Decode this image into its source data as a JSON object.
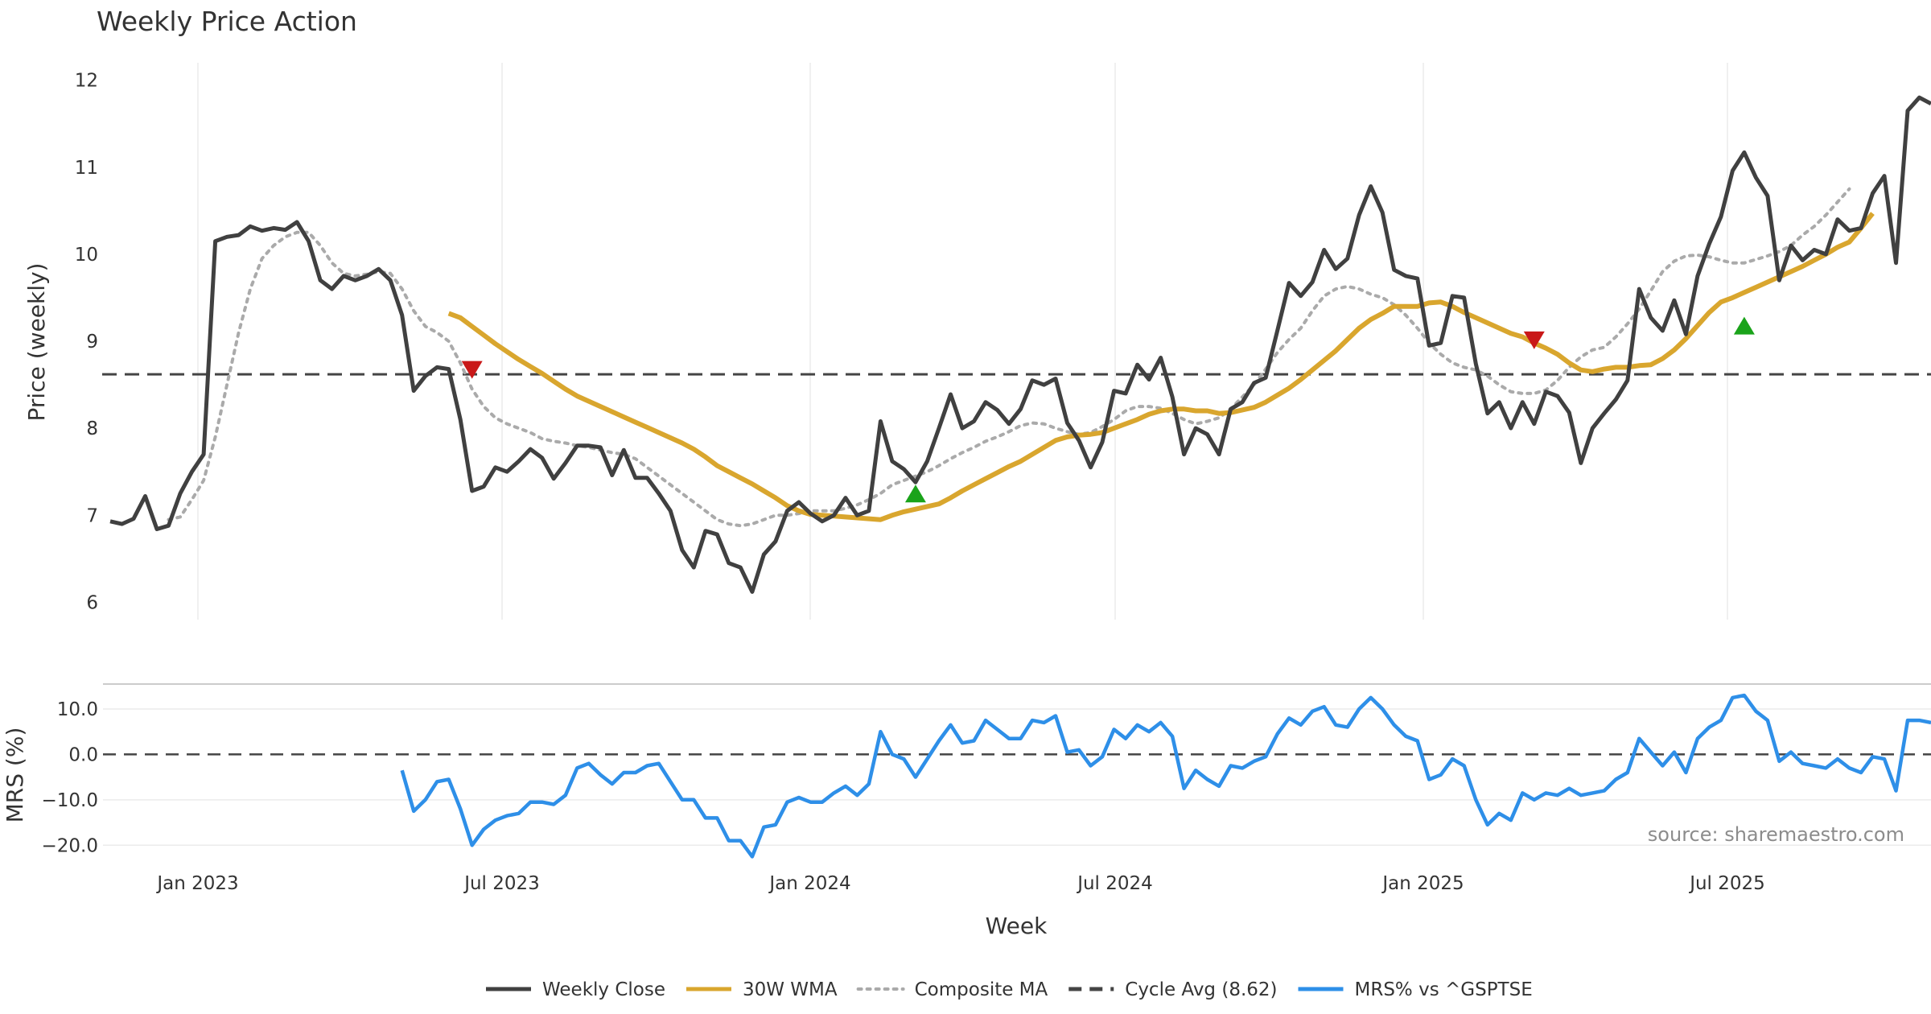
{
  "chart_data": {
    "type": "line",
    "title": "Weekly Price Action",
    "source": "source: sharemaestro.com",
    "xlabel": "Week",
    "x_ticks": [
      "Jan 2023",
      "Jul 2023",
      "Jan 2024",
      "Jul 2024",
      "Jan 2025",
      "Jul 2025"
    ],
    "legend": {
      "placement": "bottom-center",
      "entries": [
        {
          "key": "close",
          "label": "Weekly Close",
          "color": "#404040",
          "style": "solid"
        },
        {
          "key": "wma",
          "label": "30W WMA",
          "color": "#d9a62e",
          "style": "solid"
        },
        {
          "key": "composite",
          "label": "Composite MA",
          "color": "#aaaaaa",
          "style": "dotted"
        },
        {
          "key": "cycle",
          "label": "Cycle Avg (8.62)",
          "color": "#444444",
          "style": "dashed"
        },
        {
          "key": "mrs",
          "label": "MRS% vs ^GSPTSE",
          "color": "#2e8fe8",
          "style": "solid"
        }
      ]
    },
    "price_panel": {
      "ylabel": "Price (weekly)",
      "ylim": [
        5.8,
        12.2
      ],
      "y_ticks": [
        "6",
        "7",
        "8",
        "9",
        "10",
        "11",
        "12"
      ],
      "cycle_avg": 8.62,
      "weekly_close": [
        6.93,
        6.9,
        6.96,
        7.22,
        6.84,
        6.88,
        7.25,
        7.5,
        7.7,
        10.15,
        10.2,
        10.22,
        10.32,
        10.27,
        10.3,
        10.28,
        10.37,
        10.15,
        9.7,
        9.6,
        9.75,
        9.7,
        9.75,
        9.83,
        9.7,
        9.3,
        8.43,
        8.6,
        8.7,
        8.68,
        8.1,
        7.28,
        7.33,
        7.55,
        7.5,
        7.62,
        7.76,
        7.66,
        7.42,
        7.6,
        7.8,
        7.8,
        7.78,
        7.46,
        7.75,
        7.43,
        7.43,
        7.25,
        7.05,
        6.6,
        6.4,
        6.82,
        6.78,
        6.45,
        6.4,
        6.12,
        6.55,
        6.7,
        7.05,
        7.15,
        7.02,
        6.93,
        7.0,
        7.2,
        7.0,
        7.05,
        8.08,
        7.62,
        7.53,
        7.38,
        7.62,
        8.0,
        8.39,
        8.0,
        8.08,
        8.3,
        8.21,
        8.05,
        8.22,
        8.55,
        8.5,
        8.57,
        8.06,
        7.86,
        7.55,
        7.84,
        8.43,
        8.4,
        8.73,
        8.56,
        8.81,
        8.36,
        7.7,
        8.0,
        7.93,
        7.7,
        8.22,
        8.3,
        8.52,
        8.58,
        9.12,
        9.67,
        9.52,
        9.68,
        10.05,
        9.83,
        9.95,
        10.45,
        10.78,
        10.48,
        9.82,
        9.75,
        9.72,
        8.95,
        8.98,
        9.52,
        9.5,
        8.74,
        8.17,
        8.3,
        8.0,
        8.3,
        8.05,
        8.42,
        8.37,
        8.18,
        7.6,
        8.0,
        8.17,
        8.33,
        8.55,
        9.6,
        9.27,
        9.12,
        9.47,
        9.08,
        9.75,
        10.12,
        10.43,
        10.96,
        11.17,
        10.88,
        10.67,
        9.7,
        10.1,
        9.93,
        10.05,
        10.0,
        10.4,
        10.27,
        10.3,
        10.7,
        10.9,
        9.9,
        11.65,
        11.8,
        11.73
      ],
      "wma_30w": [
        null,
        null,
        null,
        null,
        null,
        null,
        null,
        null,
        null,
        null,
        null,
        null,
        null,
        null,
        null,
        null,
        null,
        null,
        null,
        null,
        null,
        null,
        null,
        null,
        null,
        null,
        null,
        null,
        null,
        9.32,
        9.27,
        9.17,
        9.07,
        8.97,
        8.88,
        8.79,
        8.71,
        8.63,
        8.54,
        8.45,
        8.37,
        8.31,
        8.25,
        8.19,
        8.13,
        8.07,
        8.01,
        7.95,
        7.89,
        7.83,
        7.76,
        7.67,
        7.57,
        7.5,
        7.43,
        7.36,
        7.28,
        7.2,
        7.11,
        7.05,
        7.01,
        7.0,
        6.99,
        6.98,
        6.97,
        6.96,
        6.95,
        7.0,
        7.04,
        7.07,
        7.1,
        7.13,
        7.2,
        7.28,
        7.35,
        7.42,
        7.49,
        7.56,
        7.62,
        7.7,
        7.78,
        7.86,
        7.9,
        7.92,
        7.93,
        7.95,
        8.0,
        8.05,
        8.1,
        8.16,
        8.2,
        8.22,
        8.22,
        8.2,
        8.2,
        8.17,
        8.18,
        8.21,
        8.24,
        8.3,
        8.38,
        8.46,
        8.56,
        8.67,
        8.78,
        8.89,
        9.02,
        9.15,
        9.25,
        9.32,
        9.4,
        9.4,
        9.4,
        9.44,
        9.45,
        9.4,
        9.33,
        9.27,
        9.21,
        9.15,
        9.09,
        9.05,
        8.98,
        8.92,
        8.85,
        8.75,
        8.67,
        8.65,
        8.68,
        8.7,
        8.7,
        8.72,
        8.73,
        8.8,
        8.9,
        9.03,
        9.18,
        9.33,
        9.45,
        9.5,
        9.56,
        9.62,
        9.68,
        9.74,
        9.8,
        9.86,
        9.93,
        10.0,
        10.08,
        10.14,
        10.3,
        10.47
      ],
      "composite_ma": [
        null,
        null,
        null,
        null,
        null,
        6.95,
        6.98,
        7.18,
        7.4,
        7.9,
        8.5,
        9.1,
        9.6,
        9.95,
        10.1,
        10.2,
        10.25,
        10.25,
        10.1,
        9.9,
        9.78,
        9.75,
        9.77,
        9.8,
        9.78,
        9.6,
        9.35,
        9.17,
        9.1,
        9.0,
        8.75,
        8.45,
        8.25,
        8.12,
        8.05,
        8.0,
        7.95,
        7.88,
        7.85,
        7.83,
        7.8,
        7.78,
        7.75,
        7.72,
        7.7,
        7.65,
        7.55,
        7.45,
        7.35,
        7.25,
        7.15,
        7.05,
        6.95,
        6.9,
        6.88,
        6.9,
        6.95,
        7.0,
        7.0,
        7.02,
        7.05,
        7.05,
        7.05,
        7.08,
        7.12,
        7.18,
        7.25,
        7.35,
        7.4,
        7.45,
        7.5,
        7.57,
        7.65,
        7.72,
        7.78,
        7.85,
        7.9,
        7.96,
        8.03,
        8.06,
        8.05,
        8.0,
        7.96,
        7.93,
        7.95,
        8.02,
        8.1,
        8.2,
        8.25,
        8.25,
        8.23,
        8.17,
        8.1,
        8.05,
        8.08,
        8.12,
        8.22,
        8.36,
        8.5,
        8.68,
        8.87,
        9.02,
        9.15,
        9.35,
        9.52,
        9.6,
        9.63,
        9.6,
        9.54,
        9.5,
        9.42,
        9.3,
        9.15,
        8.98,
        8.85,
        8.75,
        8.7,
        8.67,
        8.6,
        8.5,
        8.42,
        8.4,
        8.4,
        8.44,
        8.55,
        8.7,
        8.82,
        8.9,
        8.93,
        9.05,
        9.2,
        9.37,
        9.58,
        9.8,
        9.92,
        9.98,
        9.99,
        9.97,
        9.93,
        9.9,
        9.9,
        9.94,
        9.98,
        10.03,
        10.1,
        10.22,
        10.32,
        10.45,
        10.6,
        10.75
      ]
    },
    "mrs_panel": {
      "ylabel": "MRS (%)",
      "ylim": [
        -23.5,
        15.5
      ],
      "y_ticks": [
        "10.0",
        "0.0",
        "−10.0",
        "−20.0"
      ],
      "values": [
        null,
        null,
        null,
        null,
        null,
        null,
        null,
        null,
        null,
        null,
        null,
        null,
        null,
        null,
        null,
        null,
        null,
        null,
        null,
        null,
        null,
        null,
        null,
        null,
        null,
        -3.5,
        -12.5,
        -10.0,
        -6.0,
        -5.5,
        -12.0,
        -20.0,
        -16.5,
        -14.5,
        -13.5,
        -13.0,
        -10.5,
        -10.5,
        -11.0,
        -9.0,
        -3.0,
        -2.0,
        -4.5,
        -6.5,
        -4.0,
        -4.0,
        -2.5,
        -2.0,
        -6.0,
        -10.0,
        -10.0,
        -14.0,
        -14.0,
        -19.0,
        -19.0,
        -22.5,
        -16.0,
        -15.5,
        -10.5,
        -9.5,
        -10.5,
        -10.5,
        -8.5,
        -7.0,
        -9.0,
        -6.5,
        5.0,
        0.0,
        -1.0,
        -5.0,
        -1.0,
        3.0,
        6.5,
        2.5,
        3.0,
        7.5,
        5.5,
        3.5,
        3.5,
        7.5,
        7.0,
        8.5,
        0.5,
        1.0,
        -2.5,
        -0.5,
        5.5,
        3.5,
        6.5,
        5.0,
        7.0,
        4.0,
        -7.5,
        -3.5,
        -5.5,
        -7.0,
        -2.5,
        -3.0,
        -1.5,
        -0.5,
        4.5,
        8.0,
        6.5,
        9.5,
        10.5,
        6.5,
        6.0,
        10.0,
        12.5,
        10.0,
        6.5,
        4.0,
        3.0,
        -5.5,
        -4.5,
        -1.0,
        -2.5,
        -10.0,
        -15.5,
        -13.0,
        -14.5,
        -8.5,
        -10.0,
        -8.5,
        -9.0,
        -7.5,
        -9.0,
        -8.5,
        -8.0,
        -5.5,
        -4.0,
        3.5,
        0.5,
        -2.5,
        0.5,
        -4.0,
        3.5,
        6.0,
        7.5,
        12.5,
        13.0,
        9.5,
        7.5,
        -1.5,
        0.5,
        -2.0,
        -2.5,
        -3.0,
        -1.0,
        -3.0,
        -4.0,
        -0.5,
        -1.0,
        -8.0,
        7.5,
        7.5,
        7.0
      ]
    },
    "signals": [
      {
        "type": "sell",
        "index": 31,
        "price": 8.68
      },
      {
        "type": "buy",
        "index": 69,
        "price": 7.24
      },
      {
        "type": "sell",
        "index": 122,
        "price": 9.02
      },
      {
        "type": "buy",
        "index": 140,
        "price": 9.17
      }
    ]
  }
}
